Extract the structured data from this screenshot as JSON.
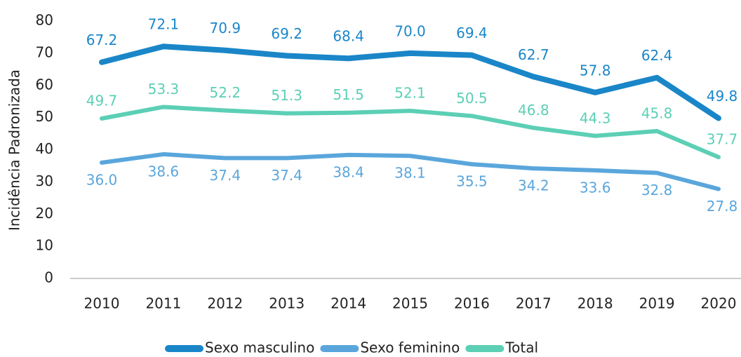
{
  "chart_data": {
    "type": "line",
    "y_label": "Incidência Padronizada",
    "categories": [
      "2010",
      "2011",
      "2012",
      "2013",
      "2014",
      "2015",
      "2016",
      "2017",
      "2018",
      "2019",
      "2020"
    ],
    "series": [
      {
        "name": "Sexo masculino",
        "color": "#1a86c8",
        "values": [
          67.2,
          72.1,
          70.9,
          69.2,
          68.4,
          70.0,
          69.4,
          62.7,
          57.8,
          62.4,
          49.8
        ],
        "value_labels": [
          "67.2",
          "72.1",
          "70.9",
          "69.2",
          "68.4",
          "70.0",
          "69.4",
          "62.7",
          "57.8",
          "62.4",
          "49.8"
        ]
      },
      {
        "name": "Sexo feminino",
        "color": "#5aa6dc",
        "values": [
          36.0,
          38.6,
          37.4,
          37.4,
          38.4,
          38.1,
          35.5,
          34.2,
          33.6,
          32.8,
          27.8
        ],
        "value_labels": [
          "36.0",
          "38.6",
          "37.4",
          "37.4",
          "38.4",
          "38.1",
          "35.5",
          "34.2",
          "33.6",
          "32.8",
          "27.8"
        ]
      },
      {
        "name": "Total",
        "color": "#5ccfb5",
        "values": [
          49.7,
          53.3,
          52.2,
          51.3,
          51.5,
          52.1,
          50.5,
          46.8,
          44.3,
          45.8,
          37.7
        ],
        "value_labels": [
          "49.7",
          "53.3",
          "52.2",
          "51.3",
          "51.5",
          "52.1",
          "50.5",
          "46.8",
          "44.3",
          "45.8",
          "37.7"
        ]
      }
    ],
    "ylim": [
      0,
      80
    ],
    "yticks": [
      0,
      10,
      20,
      30,
      40,
      50,
      60,
      70,
      80
    ],
    "grid": false,
    "legend": "bottom"
  }
}
